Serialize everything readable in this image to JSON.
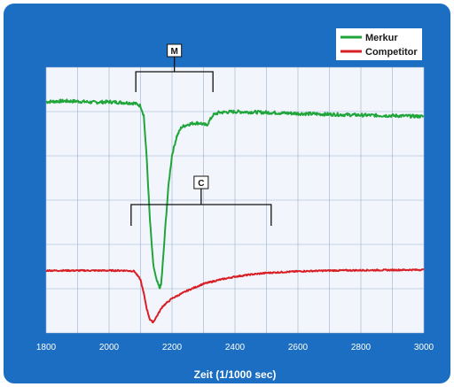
{
  "chart_data": {
    "type": "line",
    "title": "",
    "xlabel": "Zeit (1/1000 sec)",
    "ylabel": "",
    "xlim": [
      1800,
      3000
    ],
    "x_ticks": [
      1800,
      2000,
      2200,
      2400,
      2600,
      2800,
      3000
    ],
    "y_ticks_shown": false,
    "grid": true,
    "legend_position": "top-right",
    "series": [
      {
        "name": "Merkur",
        "color": "#1fa53a",
        "x": [
          1800,
          1850,
          1900,
          1950,
          2000,
          2050,
          2080,
          2100,
          2110,
          2120,
          2130,
          2140,
          2150,
          2160,
          2165,
          2170,
          2180,
          2190,
          2200,
          2215,
          2230,
          2250,
          2270,
          2290,
          2300,
          2310,
          2320,
          2330,
          2350,
          2400,
          2500,
          2600,
          2700,
          2800,
          2900,
          3000
        ],
        "y": [
          0.87,
          0.873,
          0.872,
          0.868,
          0.87,
          0.867,
          0.865,
          0.855,
          0.82,
          0.65,
          0.42,
          0.26,
          0.2,
          0.17,
          0.18,
          0.25,
          0.42,
          0.57,
          0.67,
          0.74,
          0.775,
          0.785,
          0.79,
          0.79,
          0.785,
          0.782,
          0.8,
          0.82,
          0.83,
          0.833,
          0.83,
          0.826,
          0.823,
          0.82,
          0.818,
          0.815
        ]
      },
      {
        "name": "Competitor",
        "color": "#d91f26",
        "x": [
          1800,
          1900,
          2000,
          2050,
          2080,
          2100,
          2110,
          2120,
          2130,
          2140,
          2150,
          2170,
          2200,
          2250,
          2300,
          2350,
          2400,
          2450,
          2500,
          2600,
          2700,
          2800,
          2900,
          3000
        ],
        "y": [
          0.235,
          0.235,
          0.235,
          0.235,
          0.233,
          0.2,
          0.15,
          0.09,
          0.05,
          0.04,
          0.06,
          0.1,
          0.13,
          0.16,
          0.185,
          0.2,
          0.212,
          0.22,
          0.226,
          0.232,
          0.235,
          0.236,
          0.237,
          0.238
        ]
      }
    ],
    "annotations": [
      {
        "label": "M",
        "x_start": 2085,
        "x_end": 2330
      },
      {
        "label": "C",
        "x_start": 2070,
        "x_end": 2515
      }
    ]
  },
  "colors": {
    "frame_blue": "#1c6ec2",
    "plot_bg": "#f2f6fc",
    "grid": "#9ab0cf"
  }
}
